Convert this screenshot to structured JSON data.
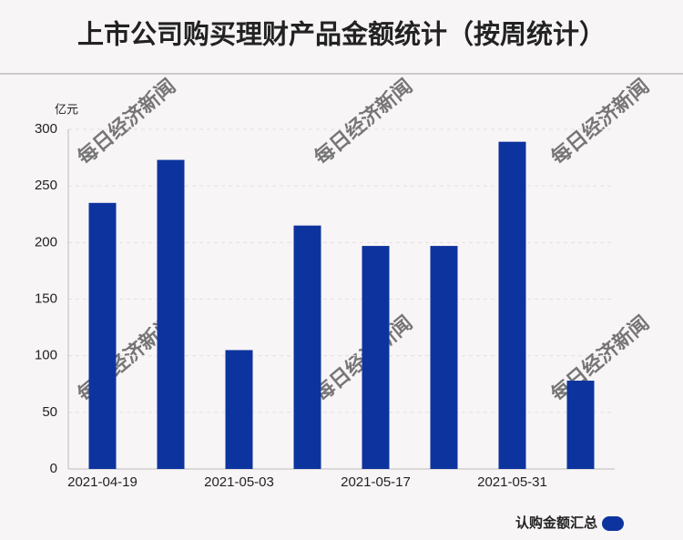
{
  "chart_data": {
    "type": "bar",
    "title": "上市公司购买理财产品金额统计（按周统计）",
    "y_label": "亿元",
    "watermark": "每日经济新闻",
    "categories": [
      "2021-04-19",
      null,
      "2021-05-03",
      null,
      "2021-05-17",
      null,
      "2021-05-31",
      null
    ],
    "series": [
      {
        "name": "认购金额汇总",
        "color": "#0d349e",
        "values": [
          235,
          273,
          105,
          215,
          197,
          197,
          289,
          78
        ]
      }
    ],
    "ylim": [
      0,
      300
    ],
    "yticks": [
      0,
      50,
      100,
      150,
      200,
      250,
      300
    ],
    "grid": true,
    "legend": "bottom-right"
  }
}
